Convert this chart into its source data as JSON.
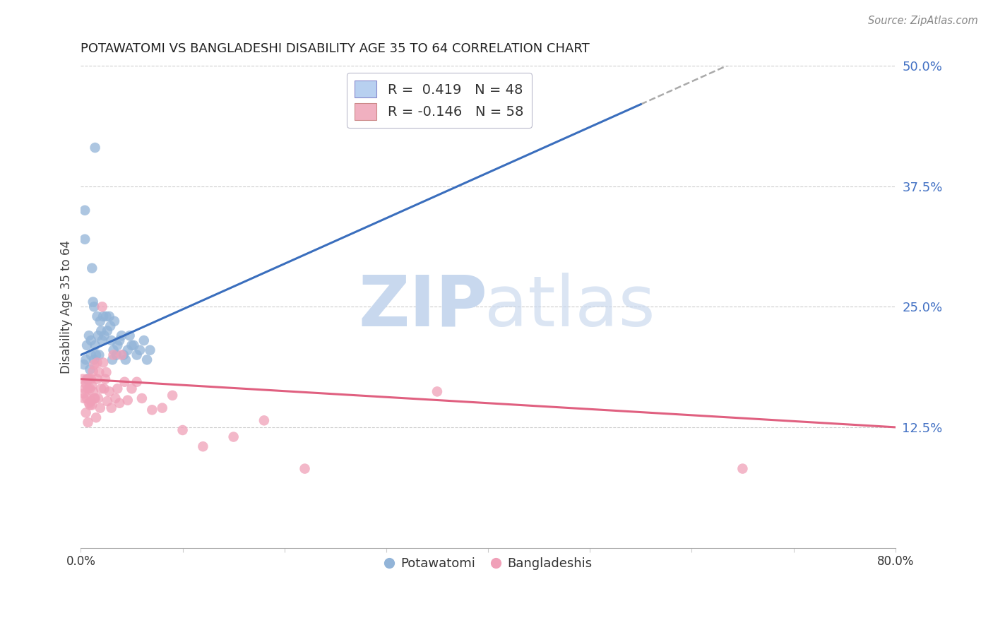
{
  "title": "POTAWATOMI VS BANGLADESHI DISABILITY AGE 35 TO 64 CORRELATION CHART",
  "source": "Source: ZipAtlas.com",
  "ylabel": "Disability Age 35 to 64",
  "xlim": [
    0.0,
    0.8
  ],
  "ylim": [
    0.0,
    0.5
  ],
  "ytick_positions": [
    0.125,
    0.25,
    0.375,
    0.5
  ],
  "ytick_labels": [
    "12.5%",
    "25.0%",
    "37.5%",
    "50.0%"
  ],
  "r_potawatomi": 0.419,
  "n_potawatomi": 48,
  "r_bangladeshi": -0.146,
  "n_bangladeshi": 58,
  "blue_color": "#92b4d8",
  "blue_line_color": "#3a6ebd",
  "pink_color": "#f0a0b8",
  "pink_line_color": "#e06080",
  "legend_blue_box": "#b8d0f0",
  "legend_pink_box": "#f0b0c0",
  "potawatomi_x": [
    0.003,
    0.004,
    0.004,
    0.005,
    0.006,
    0.007,
    0.008,
    0.009,
    0.01,
    0.01,
    0.011,
    0.012,
    0.013,
    0.013,
    0.014,
    0.015,
    0.016,
    0.017,
    0.018,
    0.019,
    0.02,
    0.021,
    0.022,
    0.023,
    0.025,
    0.026,
    0.028,
    0.029,
    0.03,
    0.031,
    0.032,
    0.033,
    0.035,
    0.036,
    0.038,
    0.04,
    0.042,
    0.044,
    0.046,
    0.048,
    0.05,
    0.052,
    0.055,
    0.058,
    0.062,
    0.065,
    0.068,
    0.014
  ],
  "potawatomi_y": [
    0.19,
    0.35,
    0.32,
    0.195,
    0.21,
    0.175,
    0.22,
    0.185,
    0.2,
    0.215,
    0.29,
    0.255,
    0.25,
    0.195,
    0.21,
    0.2,
    0.24,
    0.22,
    0.2,
    0.235,
    0.225,
    0.215,
    0.24,
    0.22,
    0.24,
    0.225,
    0.24,
    0.23,
    0.215,
    0.195,
    0.205,
    0.235,
    0.2,
    0.21,
    0.215,
    0.22,
    0.2,
    0.195,
    0.205,
    0.22,
    0.21,
    0.21,
    0.2,
    0.205,
    0.215,
    0.195,
    0.205,
    0.415
  ],
  "bangladeshi_x": [
    0.002,
    0.003,
    0.003,
    0.004,
    0.005,
    0.005,
    0.006,
    0.006,
    0.007,
    0.007,
    0.008,
    0.008,
    0.009,
    0.009,
    0.01,
    0.01,
    0.011,
    0.011,
    0.012,
    0.012,
    0.013,
    0.013,
    0.014,
    0.015,
    0.016,
    0.016,
    0.017,
    0.018,
    0.019,
    0.02,
    0.021,
    0.022,
    0.023,
    0.024,
    0.025,
    0.026,
    0.028,
    0.03,
    0.032,
    0.034,
    0.036,
    0.038,
    0.04,
    0.043,
    0.046,
    0.05,
    0.055,
    0.06,
    0.07,
    0.08,
    0.09,
    0.1,
    0.12,
    0.15,
    0.18,
    0.22,
    0.65,
    0.35
  ],
  "bangladeshi_y": [
    0.175,
    0.155,
    0.16,
    0.165,
    0.17,
    0.14,
    0.155,
    0.175,
    0.165,
    0.13,
    0.175,
    0.15,
    0.165,
    0.148,
    0.152,
    0.175,
    0.168,
    0.148,
    0.183,
    0.162,
    0.155,
    0.19,
    0.155,
    0.135,
    0.192,
    0.175,
    0.155,
    0.182,
    0.145,
    0.165,
    0.25,
    0.192,
    0.165,
    0.175,
    0.182,
    0.152,
    0.162,
    0.145,
    0.2,
    0.155,
    0.165,
    0.15,
    0.2,
    0.172,
    0.153,
    0.165,
    0.172,
    0.155,
    0.143,
    0.145,
    0.158,
    0.122,
    0.105,
    0.115,
    0.132,
    0.082,
    0.082,
    0.162
  ]
}
